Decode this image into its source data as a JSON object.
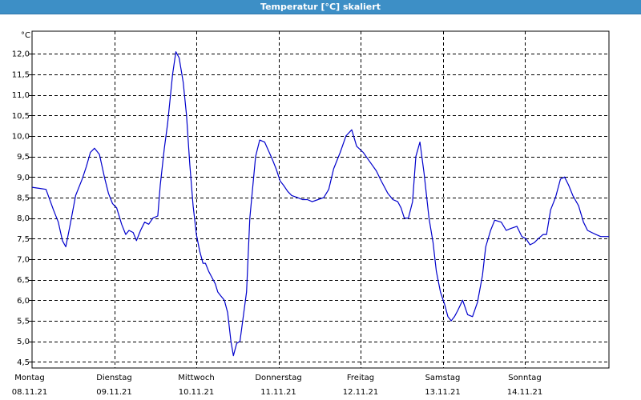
{
  "window": {
    "title": "Temperatur [°C] skaliert"
  },
  "chart_data": {
    "type": "line",
    "title": "Temperatur [°C] skaliert",
    "ylabel": "°C",
    "xlabel": "",
    "ylim": [
      4.35,
      12.55
    ],
    "xlim": [
      0,
      7.02
    ],
    "grid": true,
    "y_ticks": [
      "4,5",
      "5,0",
      "5,5",
      "6,0",
      "6,5",
      "7,0",
      "7,5",
      "8,0",
      "8,5",
      "9,0",
      "9,5",
      "10,0",
      "10,5",
      "11,0",
      "11,5",
      "12,0"
    ],
    "y_tick_values": [
      4.5,
      5.0,
      5.5,
      6.0,
      6.5,
      7.0,
      7.5,
      8.0,
      8.5,
      9.0,
      9.5,
      10.0,
      10.5,
      11.0,
      11.5,
      12.0
    ],
    "x_day_labels": [
      "Montag",
      "Dienstag",
      "Mittwoch",
      "Donnerstag",
      "Freitag",
      "Samstag",
      "Sonntag"
    ],
    "x_date_labels": [
      "08.11.21",
      "09.11.21",
      "10.11.21",
      "11.11.21",
      "12.11.21",
      "13.11.21",
      "14.11.21"
    ],
    "series": [
      {
        "color": "#0000cc",
        "x": [
          0.0,
          0.1,
          0.17,
          0.26,
          0.32,
          0.37,
          0.41,
          0.46,
          0.53,
          0.61,
          0.66,
          0.71,
          0.76,
          0.82,
          0.88,
          0.93,
          0.98,
          1.03,
          1.09,
          1.14,
          1.18,
          1.23,
          1.27,
          1.32,
          1.37,
          1.42,
          1.47,
          1.53,
          1.56,
          1.61,
          1.65,
          1.71,
          1.75,
          1.79,
          1.84,
          1.88,
          1.92,
          1.96,
          2.0,
          2.04,
          2.08,
          2.11,
          2.15,
          2.19,
          2.23,
          2.26,
          2.3,
          2.34,
          2.38,
          2.42,
          2.45,
          2.49,
          2.53,
          2.57,
          2.61,
          2.65,
          2.72,
          2.77,
          2.83,
          2.92,
          2.97,
          3.02,
          3.06,
          3.11,
          3.16,
          3.23,
          3.29,
          3.35,
          3.41,
          3.48,
          3.55,
          3.61,
          3.67,
          3.75,
          3.82,
          3.89,
          3.95,
          4.03,
          4.1,
          4.19,
          4.25,
          4.33,
          4.39,
          4.45,
          4.49,
          4.53,
          4.58,
          4.63,
          4.67,
          4.72,
          4.77,
          4.83,
          4.88,
          4.92,
          4.97,
          5.02,
          5.06,
          5.1,
          5.14,
          5.18,
          5.24,
          5.3,
          5.36,
          5.42,
          5.48,
          5.52,
          5.58,
          5.63,
          5.71,
          5.77,
          5.83,
          5.9,
          5.96,
          6.01,
          6.06,
          6.11,
          6.16,
          6.22,
          6.26,
          6.31,
          6.37,
          6.43,
          6.48,
          6.53,
          6.58,
          6.65,
          6.71,
          6.76,
          6.81,
          6.86,
          6.92,
          6.97,
          7.02
        ],
        "y": [
          8.75,
          8.72,
          8.7,
          8.2,
          7.9,
          7.45,
          7.3,
          7.8,
          8.55,
          8.95,
          9.25,
          9.6,
          9.7,
          9.55,
          9.0,
          8.6,
          8.35,
          8.25,
          7.85,
          7.6,
          7.7,
          7.65,
          7.45,
          7.7,
          7.9,
          7.85,
          8.0,
          8.05,
          8.8,
          9.7,
          10.3,
          11.5,
          12.05,
          11.9,
          11.3,
          10.5,
          9.3,
          8.3,
          7.6,
          7.2,
          6.9,
          6.9,
          6.7,
          6.55,
          6.4,
          6.2,
          6.1,
          6.0,
          5.7,
          5.0,
          4.65,
          4.95,
          5.0,
          5.6,
          6.2,
          8.0,
          9.5,
          9.9,
          9.85,
          9.45,
          9.2,
          8.9,
          8.8,
          8.65,
          8.55,
          8.5,
          8.45,
          8.45,
          8.4,
          8.45,
          8.5,
          8.7,
          9.2,
          9.6,
          10.0,
          10.15,
          9.75,
          9.6,
          9.4,
          9.15,
          8.9,
          8.6,
          8.45,
          8.4,
          8.25,
          8.0,
          8.0,
          8.4,
          9.5,
          9.85,
          9.1,
          8.0,
          7.4,
          6.7,
          6.2,
          5.9,
          5.6,
          5.5,
          5.6,
          5.75,
          6.0,
          5.65,
          5.6,
          5.95,
          6.6,
          7.3,
          7.7,
          7.95,
          7.9,
          7.7,
          7.75,
          7.8,
          7.55,
          7.5,
          7.35,
          7.4,
          7.5,
          7.6,
          7.6,
          8.2,
          8.5,
          8.95,
          9.0,
          8.8,
          8.55,
          8.3,
          7.9,
          7.7,
          7.65,
          7.6,
          7.55,
          7.55,
          7.55
        ]
      }
    ]
  }
}
